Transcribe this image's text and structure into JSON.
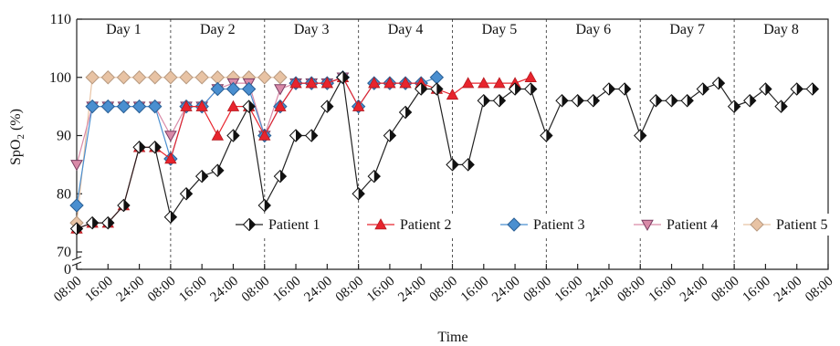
{
  "chart_data": {
    "type": "line",
    "xlabel": "Time",
    "ylabel": "SpO2 (%)",
    "ylabel_main": "SpO",
    "ylabel_sub": "2",
    "ylabel_unit": " (%)",
    "ylim": [
      70,
      110
    ],
    "y_break": true,
    "y_ticks": [
      "0",
      "70",
      "80",
      "90",
      "100",
      "110"
    ],
    "x_tick_labels": [
      "08:00",
      "16:00",
      "24:00",
      "08:00",
      "16:00",
      "24:00",
      "08:00",
      "16:00",
      "24:00",
      "08:00",
      "16:00",
      "24:00",
      "08:00",
      "16:00",
      "24:00",
      "08:00",
      "16:00",
      "24:00",
      "08:00",
      "16:00",
      "24:00",
      "08:00",
      "16:00",
      "24:00",
      "08:00"
    ],
    "days": [
      "Day 1",
      "Day 2",
      "Day 3",
      "Day 4",
      "Day 5",
      "Day 6",
      "Day 7",
      "Day 8"
    ],
    "legend_position": "inside-bottom",
    "series": [
      {
        "name": "Patient 1",
        "color": "#222222",
        "marker": "diamond-half",
        "x": [
          0,
          1,
          2,
          3,
          4,
          5,
          6,
          7,
          8,
          9,
          10,
          11,
          12,
          13,
          14,
          15,
          16,
          17,
          18,
          19,
          20,
          21,
          22,
          23,
          24,
          25,
          26,
          27,
          28,
          29,
          30,
          31,
          32,
          33,
          34,
          35,
          36,
          37,
          38,
          39,
          40,
          41,
          42,
          43,
          44,
          45,
          46,
          47,
          48
        ],
        "values": [
          74,
          75,
          75,
          78,
          88,
          88,
          76,
          80,
          83,
          84,
          90,
          95,
          78,
          83,
          90,
          90,
          95,
          100,
          80,
          83,
          90,
          94,
          98,
          98,
          85,
          85,
          96,
          96,
          98,
          98,
          90,
          96,
          96,
          96,
          98,
          98,
          90,
          96,
          96,
          96,
          98,
          99,
          95,
          96,
          98,
          95,
          98,
          98,
          null
        ]
      },
      {
        "name": "Patient 2",
        "color": "#e8242d",
        "marker": "triangle",
        "x": [
          0,
          1,
          2,
          3,
          4,
          5,
          6,
          7,
          8,
          9,
          10,
          11,
          12,
          13,
          14,
          15,
          16,
          17,
          18,
          19,
          20,
          21,
          22,
          23,
          24,
          25,
          26,
          27,
          28,
          29
        ],
        "values": [
          74,
          75,
          75,
          78,
          88,
          88,
          86,
          95,
          95,
          90,
          95,
          95,
          90,
          95,
          99,
          99,
          99,
          100,
          95,
          99,
          99,
          99,
          99,
          98,
          97,
          99,
          99,
          99,
          99,
          100
        ]
      },
      {
        "name": "Patient 3",
        "color": "#4a8fd0",
        "marker": "diamond",
        "x": [
          0,
          1,
          2,
          3,
          4,
          5,
          6,
          7,
          8,
          9,
          10,
          11,
          12,
          13,
          14,
          15,
          16,
          17,
          18,
          19,
          20,
          21,
          22,
          23
        ],
        "values": [
          78,
          95,
          95,
          95,
          95,
          95,
          86,
          95,
          95,
          98,
          98,
          98,
          90,
          95,
          99,
          99,
          99,
          100,
          95,
          99,
          99,
          99,
          99,
          100
        ]
      },
      {
        "name": "Patient 4",
        "color": "#d98aa8",
        "marker": "triangle-down",
        "x": [
          0,
          1,
          2,
          3,
          4,
          5,
          6,
          7,
          8,
          9,
          10,
          11,
          12,
          13,
          14,
          15,
          16,
          17
        ],
        "values": [
          85,
          95,
          95,
          95,
          95,
          95,
          90,
          95,
          95,
          98,
          99,
          99,
          90,
          98,
          99,
          99,
          99,
          100
        ]
      },
      {
        "name": "Patient 5",
        "color": "#e8c3a4",
        "marker": "diamond-tan",
        "x": [
          0,
          1,
          2,
          3,
          4,
          5,
          6,
          7,
          8,
          9,
          10,
          11,
          12,
          13
        ],
        "values": [
          75,
          100,
          100,
          100,
          100,
          100,
          100,
          100,
          100,
          100,
          100,
          100,
          100,
          100
        ]
      }
    ]
  }
}
